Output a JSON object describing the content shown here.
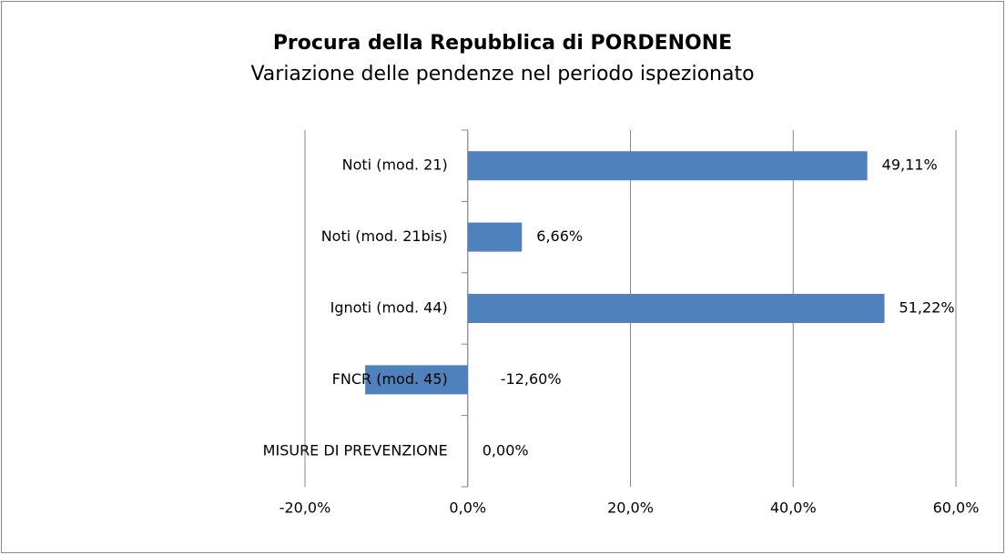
{
  "chart_data": {
    "type": "bar",
    "orientation": "horizontal",
    "title": "Procura della Repubblica di PORDENONE",
    "subtitle": "Variazione delle pendenze nel periodo ispezionato",
    "categories": [
      "Noti (mod. 21)",
      "Noti (mod. 21bis)",
      "Ignoti (mod. 44)",
      "FNCR (mod. 45)",
      "MISURE DI PREVENZIONE"
    ],
    "values": [
      49.11,
      6.66,
      51.22,
      -12.6,
      0
    ],
    "value_labels": [
      "49,11%",
      "6,66%",
      "51,22%",
      "-12,60%",
      "0,00%"
    ],
    "color": "#4f81bd",
    "xlim": [
      -20,
      60
    ],
    "xticks": [
      {
        "value": -20,
        "label": "-20,0%"
      },
      {
        "value": 0,
        "label": "0,0%"
      },
      {
        "value": 20,
        "label": "20,0%"
      },
      {
        "value": 40,
        "label": "40,0%"
      },
      {
        "value": 60,
        "label": "60,0%"
      }
    ],
    "grid": true
  }
}
